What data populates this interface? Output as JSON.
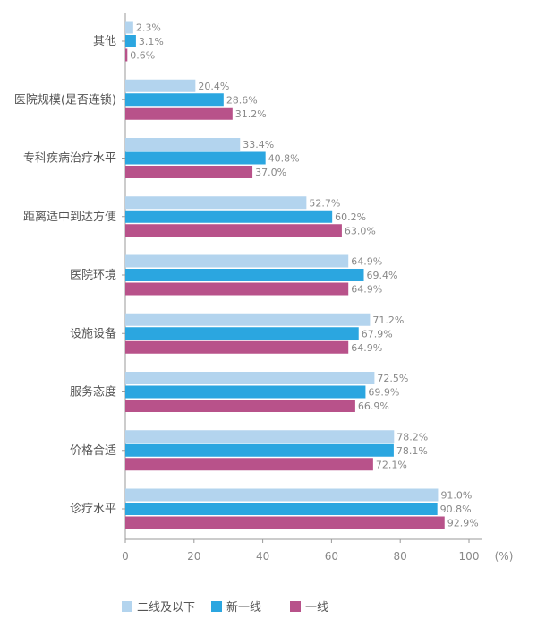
{
  "chart_data": {
    "type": "bar",
    "orientation": "horizontal",
    "categories": [
      "其他",
      "医院规模(是否连锁)",
      "专科疾病治疗水平",
      "距离适中到达方便",
      "医院环境",
      "设施设备",
      "服务态度",
      "价格合适",
      "诊疗水平"
    ],
    "series": [
      {
        "name": "二线及以下",
        "color": "#b3d4ee",
        "values": [
          2.3,
          20.4,
          33.4,
          52.7,
          64.9,
          71.2,
          72.5,
          78.2,
          91.0
        ],
        "labels": [
          "2.3%",
          "20.4%",
          "33.4%",
          "52.7%",
          "64.9%",
          "71.2%",
          "72.5%",
          "78.2%",
          "91.0%"
        ]
      },
      {
        "name": "新一线",
        "color": "#2ba6e0",
        "values": [
          3.1,
          28.6,
          40.8,
          60.2,
          69.4,
          67.9,
          69.9,
          78.1,
          90.8
        ],
        "labels": [
          "3.1%",
          "28.6%",
          "40.8%",
          "60.2%",
          "69.4%",
          "67.9%",
          "69.9%",
          "78.1%",
          "90.8%"
        ]
      },
      {
        "name": "一线",
        "color": "#b8528a",
        "values": [
          0.6,
          31.2,
          37.0,
          63.0,
          64.9,
          64.9,
          66.9,
          72.1,
          92.9
        ],
        "labels": [
          "0.6%",
          "31.2%",
          "37.0%",
          "63.0%",
          "64.9%",
          "64.9%",
          "66.9%",
          "72.1%",
          "92.9%"
        ]
      }
    ],
    "xticks": [
      "0",
      "20",
      "40",
      "60",
      "80",
      "100"
    ],
    "xlim": [
      0,
      100
    ],
    "x_unit": "(%)",
    "legend_position": "bottom",
    "grid": false
  }
}
